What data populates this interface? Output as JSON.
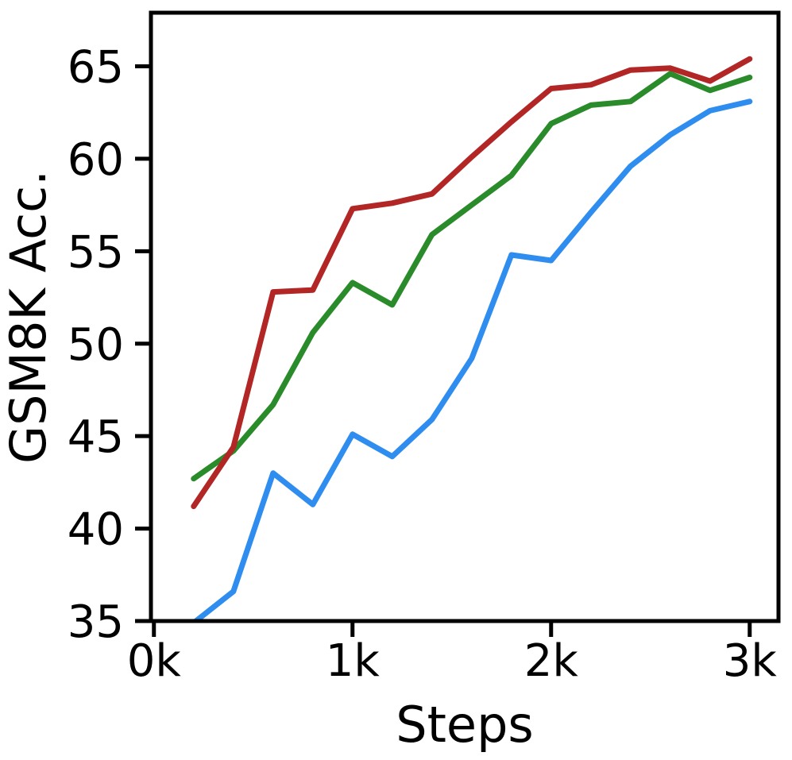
{
  "chart_data": {
    "type": "line",
    "title": "",
    "xlabel": "Steps",
    "ylabel": "GSM8K Acc.",
    "x": [
      200,
      400,
      600,
      800,
      1000,
      1200,
      1400,
      1600,
      1800,
      2000,
      2200,
      2400,
      2600,
      2800,
      3000
    ],
    "series": [
      {
        "name": "blue-series",
        "color": "#2E8DEF",
        "values": [
          34.9,
          36.6,
          43.0,
          41.3,
          45.1,
          43.9,
          45.9,
          49.2,
          54.8,
          54.5,
          57.1,
          59.6,
          61.3,
          62.6,
          63.1
        ]
      },
      {
        "name": "green-series",
        "color": "#2A8B2A",
        "values": [
          42.7,
          44.2,
          46.7,
          50.6,
          53.3,
          52.1,
          55.9,
          57.5,
          59.1,
          61.9,
          62.9,
          63.1,
          64.6,
          63.7,
          64.4
        ]
      },
      {
        "name": "red-series",
        "color": "#B22626",
        "values": [
          41.2,
          44.4,
          52.8,
          52.9,
          57.3,
          57.6,
          58.1,
          60.1,
          62.0,
          63.8,
          64.0,
          64.8,
          64.9,
          64.2,
          65.4
        ]
      }
    ],
    "x_ticks": [
      {
        "value": 0,
        "label": "0k"
      },
      {
        "value": 1000,
        "label": "1k"
      },
      {
        "value": 2000,
        "label": "2k"
      },
      {
        "value": 3000,
        "label": "3k"
      }
    ],
    "y_ticks": [
      {
        "value": 35,
        "label": "35"
      },
      {
        "value": 40,
        "label": "40"
      },
      {
        "value": 45,
        "label": "45"
      },
      {
        "value": 50,
        "label": "50"
      },
      {
        "value": 55,
        "label": "55"
      },
      {
        "value": 60,
        "label": "60"
      },
      {
        "value": 65,
        "label": "65"
      }
    ],
    "xlim": [
      -15,
      3145
    ],
    "ylim": [
      35,
      67.9
    ],
    "grid": false,
    "legend": "none",
    "axis_color": "#000000"
  }
}
